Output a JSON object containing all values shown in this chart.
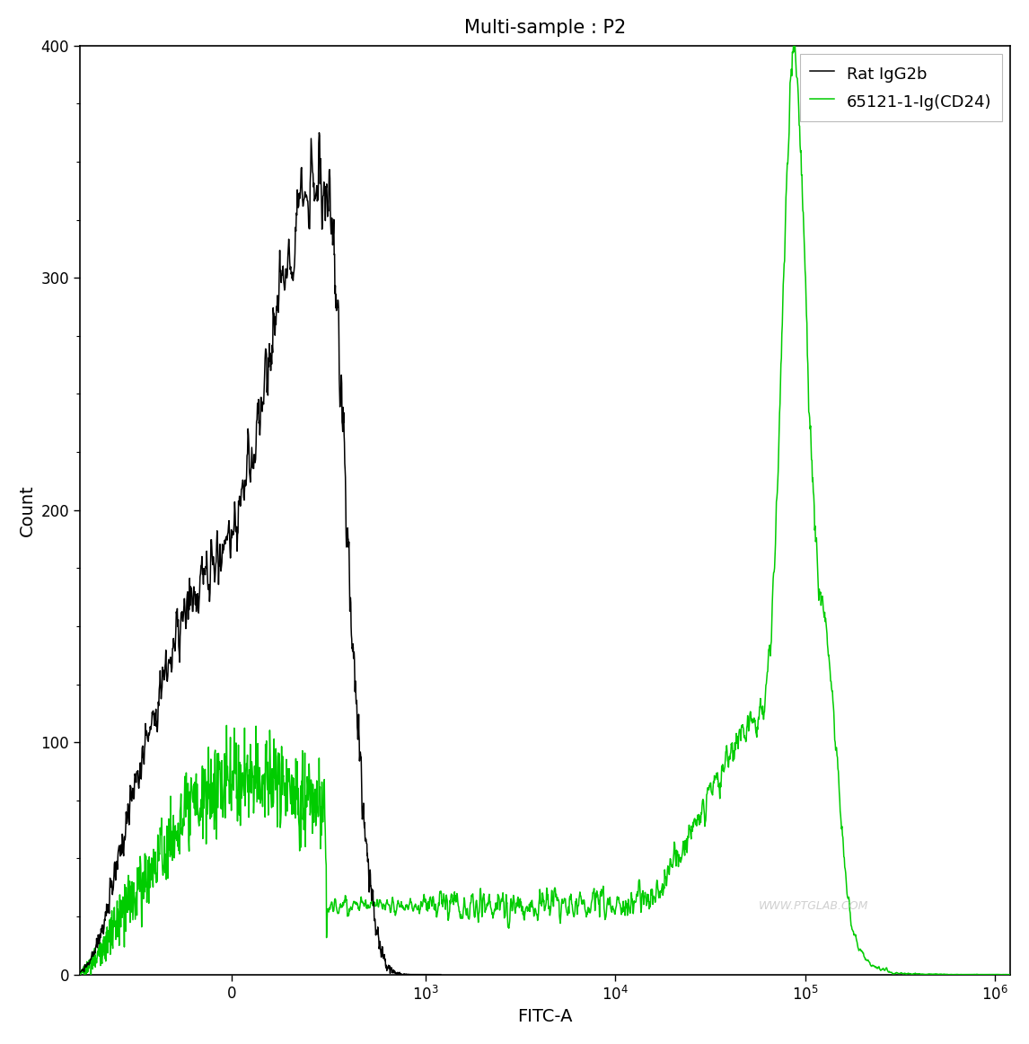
{
  "title": "Multi-sample : P2",
  "xlabel": "FITC-A",
  "ylabel": "Count",
  "ylim": [
    0,
    400
  ],
  "yticks": [
    0,
    100,
    200,
    300,
    400
  ],
  "background_color": "#ffffff",
  "line_color_black": "#000000",
  "line_color_green": "#00cc00",
  "legend_labels": [
    "Rat IgG2b",
    "65121-1-Ig(CD24)"
  ],
  "watermark": "WWW.PTGLAB.COM",
  "title_fontsize": 15,
  "axis_fontsize": 14,
  "legend_fontsize": 13,
  "linthresh": 300,
  "linscale": 0.45
}
